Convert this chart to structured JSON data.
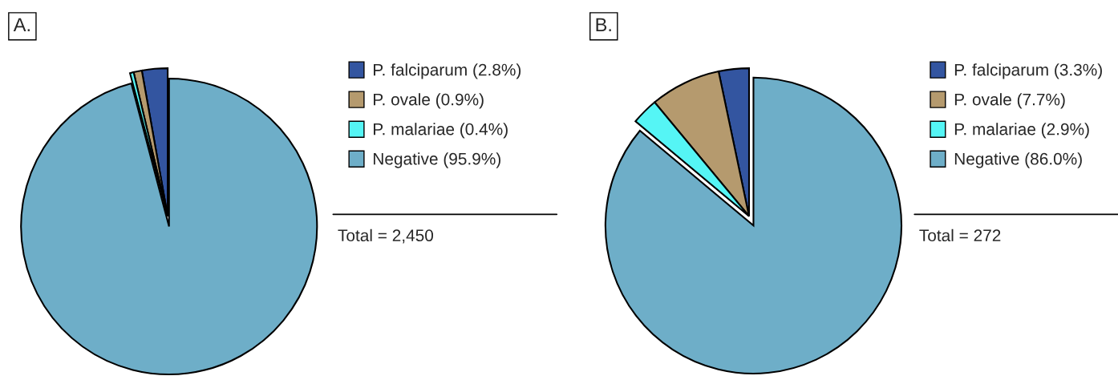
{
  "chart_data": [
    {
      "type": "pie",
      "title": "A.",
      "categories": [
        "P. falciparum (2.8%)",
        "P. ovale (0.9%)",
        "P. malariae (0.4%)",
        "Negative (95.9%)"
      ],
      "values": [
        2.8,
        0.9,
        0.4,
        95.9
      ],
      "colors": [
        "#3355a0",
        "#b59a6e",
        "#55f5f5",
        "#6eaec8"
      ],
      "legend": "right",
      "annotations": [
        "Total = 2,450"
      ]
    },
    {
      "type": "pie",
      "title": "B.",
      "categories": [
        "P. falciparum (3.3%)",
        "P. ovale (7.7%)",
        "P. malariae (2.9%)",
        "Negative (86.0%)"
      ],
      "values": [
        3.3,
        7.7,
        2.9,
        86.0
      ],
      "colors": [
        "#3355a0",
        "#b59a6e",
        "#55f5f5",
        "#6eaec8"
      ],
      "legend": "right",
      "annotations": [
        "Total = 272"
      ]
    }
  ]
}
